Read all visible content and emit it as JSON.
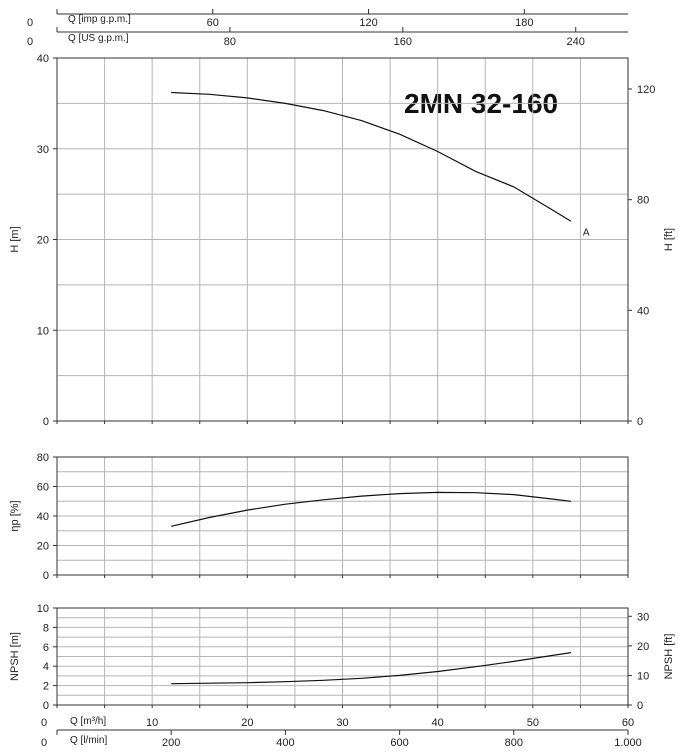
{
  "chart_data": {
    "type": "line",
    "title": "2MN 32-160",
    "flow_axes": {
      "m3h": {
        "label": "Q [m³/h]",
        "ticks": [
          0,
          10,
          20,
          30,
          40,
          50,
          60
        ],
        "tick_labels": [
          "0",
          "10",
          "20",
          "30",
          "40",
          "50",
          "60"
        ],
        "range": [
          0,
          60
        ]
      },
      "lmin": {
        "label": "Q [l/min]",
        "ticks": [
          0,
          200,
          400,
          600,
          800,
          1000
        ],
        "tick_labels": [
          "0",
          "200",
          "400",
          "600",
          "800",
          "1.000"
        ]
      },
      "us_gpm": {
        "label": "Q [US g.p.m.]",
        "ticks": [
          0,
          80,
          160,
          240
        ],
        "tick_labels": [
          "0",
          "80",
          "160",
          "240"
        ]
      },
      "imp_gpm": {
        "label": "Q [imp g.p.m.]",
        "ticks": [
          0,
          60,
          120,
          180
        ],
        "tick_labels": [
          "0",
          "60",
          "120",
          "180"
        ]
      }
    },
    "panels": [
      {
        "name": "head",
        "ylabel": "H [m]",
        "ylim": [
          0,
          40
        ],
        "yticks": [
          0,
          10,
          20,
          30,
          40
        ],
        "ylabel_right": "H [ft]",
        "yticks_right": [
          0,
          40,
          80,
          120
        ],
        "series": [
          {
            "name": "A",
            "x": [
              12,
              16,
              20,
              24,
              28,
              32,
              36,
              40,
              44,
              48,
              52,
              54
            ],
            "y": [
              36.2,
              36.0,
              35.6,
              35.0,
              34.2,
              33.1,
              31.6,
              29.7,
              27.5,
              25.8,
              23.3,
              22.0
            ]
          }
        ]
      },
      {
        "name": "efficiency",
        "ylabel": "ηp [%]",
        "ylim": [
          0,
          80
        ],
        "yticks": [
          0,
          20,
          40,
          60,
          80
        ],
        "series": [
          {
            "name": "",
            "x": [
              12,
              16,
              20,
              24,
              28,
              32,
              36,
              40,
              44,
              48,
              52,
              54
            ],
            "y": [
              33,
              39,
              44,
              48,
              51,
              53.5,
              55.2,
              56,
              55.8,
              54.5,
              51.5,
              50
            ]
          }
        ]
      },
      {
        "name": "npsh",
        "ylabel": "NPSH [m]",
        "ylim": [
          0,
          10
        ],
        "yticks": [
          0,
          2,
          4,
          6,
          8,
          10
        ],
        "ylabel_right": "NPSH [ft]",
        "yticks_right": [
          0,
          10,
          20,
          30
        ],
        "series": [
          {
            "name": "",
            "x": [
              12,
              16,
              20,
              24,
              28,
              32,
              36,
              40,
              44,
              48,
              52,
              54
            ],
            "y": [
              2.2,
              2.25,
              2.3,
              2.4,
              2.55,
              2.75,
              3.05,
              3.45,
              3.95,
              4.5,
              5.1,
              5.4
            ]
          }
        ]
      }
    ],
    "grid": true
  }
}
